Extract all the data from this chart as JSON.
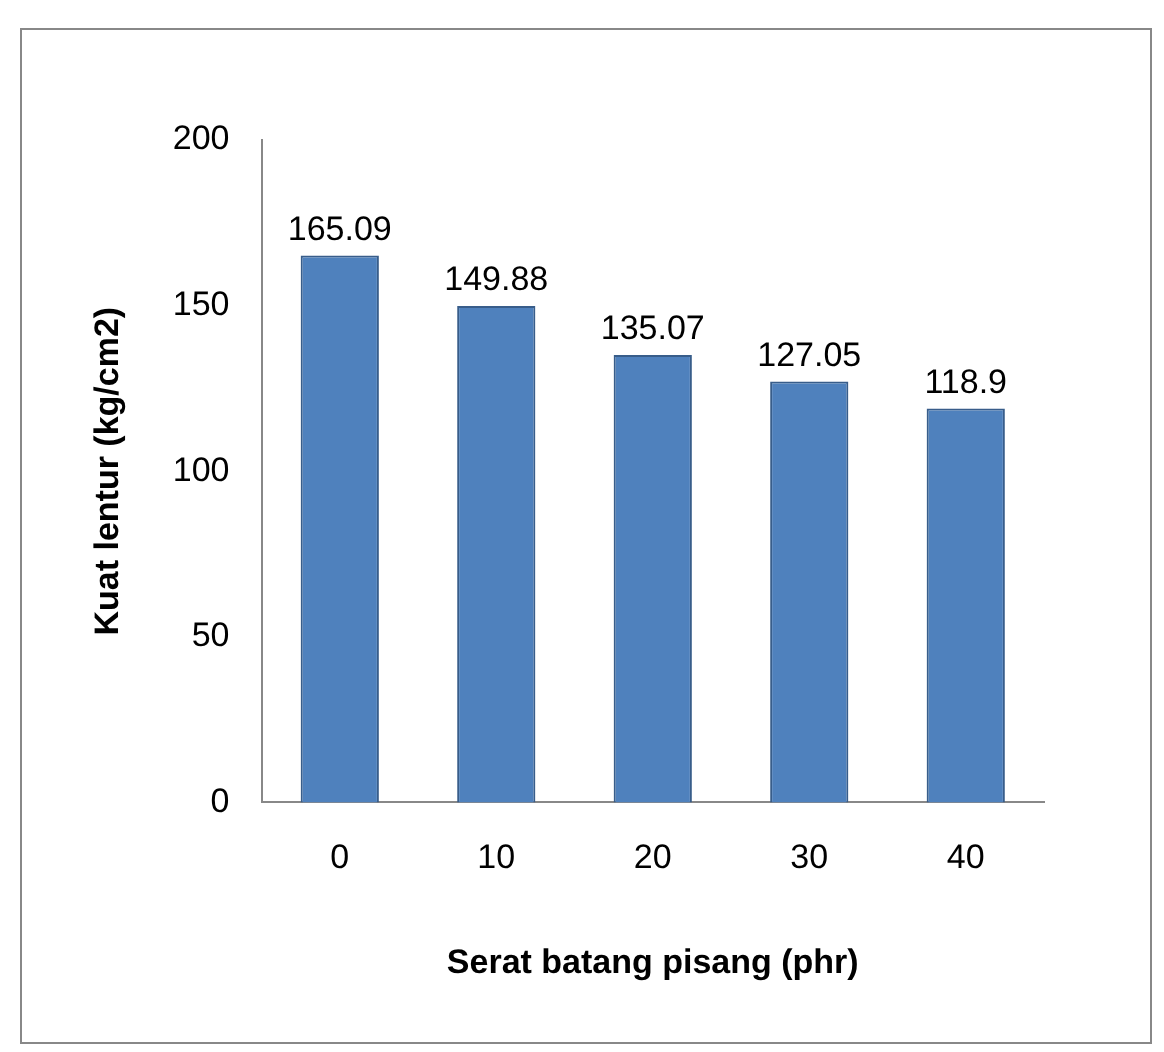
{
  "chart_data": {
    "type": "bar",
    "xlabel": "Serat batang pisang (phr)",
    "ylabel": "Kuat lentur (kg/cm2)",
    "categories": [
      "0",
      "10",
      "20",
      "30",
      "40"
    ],
    "values": [
      165.09,
      149.88,
      135.07,
      127.05,
      118.9
    ],
    "color": "#4f81bd",
    "ylim": [
      0,
      200
    ],
    "yticks": [
      0,
      50,
      100,
      150,
      200
    ],
    "grid": false,
    "legend": false,
    "data_labels": true
  }
}
